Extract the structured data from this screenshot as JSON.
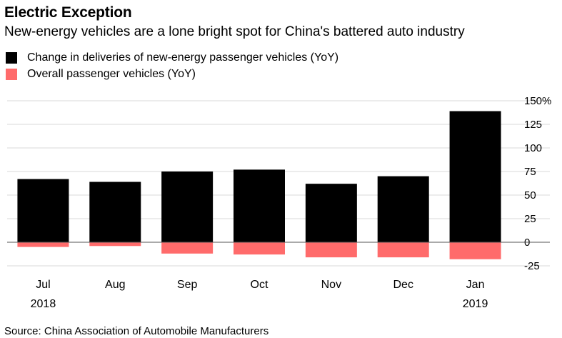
{
  "title": "Electric Exception",
  "subtitle": "New-energy vehicles are a lone bright spot for China's battered auto industry",
  "source": "Source: China Association of Automobile Manufacturers",
  "colors": {
    "nev": "#000000",
    "overall": "#ff6b6b",
    "grid": "#d9d9d9",
    "zero": "#555555"
  },
  "chart_data": {
    "type": "bar",
    "categories": [
      "Jul",
      "Aug",
      "Sep",
      "Oct",
      "Nov",
      "Dec",
      "Jan"
    ],
    "year_labels": [
      "2018",
      "",
      "",
      "",
      "",
      "",
      "2019"
    ],
    "series": [
      {
        "name": "Change in deliveries of new-energy passenger vehicles (YoY)",
        "values": [
          67,
          64,
          75,
          77,
          62,
          70,
          139
        ]
      },
      {
        "name": "Overall passenger vehicles (YoY)",
        "values": [
          -5,
          -4,
          -12,
          -13,
          -16,
          -16,
          -18
        ]
      }
    ],
    "ylim": [
      -25,
      150
    ],
    "yticks": [
      -25,
      0,
      25,
      50,
      75,
      100,
      125,
      150
    ],
    "ytick_labels": [
      "-25",
      "0",
      "25",
      "50",
      "75",
      "100",
      "125",
      "150%"
    ],
    "grid": true,
    "legend_position": "top-left",
    "y_axis_side": "right"
  }
}
